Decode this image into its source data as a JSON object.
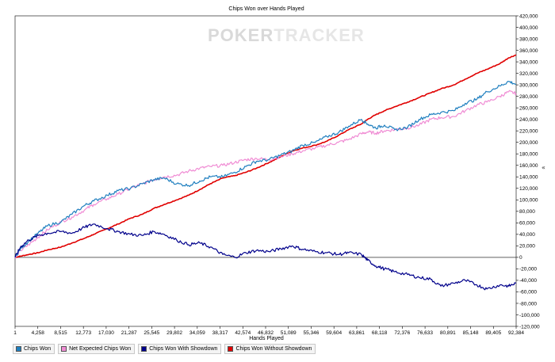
{
  "title": "Chips Won over Hands Played",
  "watermark": {
    "part1": "POKER",
    "part2": "TRACKER"
  },
  "chart_data": {
    "type": "line",
    "title": "Chips Won over Hands Played",
    "xlabel": "Hands Played",
    "ylabel": "",
    "xlim": [
      1,
      92384
    ],
    "ylim": [
      -120000,
      420000
    ],
    "x_ticks": [
      "1",
      "4,258",
      "8,515",
      "12,773",
      "17,030",
      "21,287",
      "25,545",
      "29,802",
      "34,059",
      "38,317",
      "42,574",
      "46,832",
      "51,089",
      "55,346",
      "59,604",
      "63,861",
      "68,118",
      "72,376",
      "76,633",
      "80,891",
      "85,148",
      "89,405",
      "92,384"
    ],
    "y_ticks": [
      -120000,
      -100000,
      -80000,
      -60000,
      -40000,
      -20000,
      0,
      20000,
      40000,
      60000,
      80000,
      100000,
      120000,
      140000,
      160000,
      180000,
      200000,
      220000,
      240000,
      260000,
      280000,
      300000,
      320000,
      340000,
      360000,
      380000,
      400000,
      420000
    ],
    "y_tick_labels": [
      "-120,000",
      "-100,000",
      "-80,000",
      "-60,000",
      "-40,000",
      "-20,000",
      "0",
      "20,000",
      "40,000",
      "60,000",
      "80,000",
      "100,000",
      "120,000",
      "140,000",
      "160,000",
      "180,000",
      "200,000",
      "220,000",
      "240,000",
      "260,000",
      "280,000",
      "300,000",
      "320,000",
      "340,000",
      "360,000",
      "380,000",
      "400,000",
      "420,000"
    ],
    "grid": false,
    "legend_position": "bottom-left",
    "series": [
      {
        "name": "Chips Won",
        "color": "#1f7fbf",
        "x": [
          1,
          1000,
          2500,
          4258,
          6000,
          8515,
          10500,
          12773,
          14500,
          17030,
          19000,
          21287,
          23500,
          25545,
          27500,
          29802,
          32000,
          34059,
          36000,
          38317,
          40500,
          42574,
          44500,
          46832,
          49000,
          51089,
          53000,
          55346,
          57500,
          59604,
          61500,
          63861,
          65000,
          66500,
          68118,
          70000,
          72376,
          74500,
          76633,
          78500,
          80891,
          83000,
          85148,
          87000,
          89405,
          91000,
          92384
        ],
        "y": [
          0,
          15000,
          28000,
          42000,
          55000,
          62000,
          75000,
          90000,
          98000,
          108000,
          116000,
          120000,
          128000,
          135000,
          138000,
          128000,
          125000,
          133000,
          140000,
          140000,
          148000,
          158000,
          167000,
          170000,
          178000,
          185000,
          195000,
          200000,
          210000,
          217000,
          228000,
          240000,
          232000,
          225000,
          230000,
          222000,
          226000,
          240000,
          248000,
          252000,
          255000,
          268000,
          275000,
          288000,
          298000,
          306000,
          301000
        ]
      },
      {
        "name": "Net Expected Chips Won",
        "color": "#f08cd4",
        "x": [
          1,
          1000,
          2500,
          4258,
          6000,
          8515,
          10500,
          12773,
          14500,
          17030,
          19000,
          21287,
          23500,
          25545,
          27500,
          29802,
          32000,
          34059,
          36000,
          38317,
          40500,
          42574,
          44500,
          46832,
          49000,
          51089,
          53000,
          55346,
          57500,
          59604,
          61500,
          63861,
          65000,
          66500,
          68118,
          70000,
          72376,
          74500,
          76633,
          78500,
          80891,
          83000,
          85148,
          87000,
          89405,
          91000,
          92384
        ],
        "y": [
          0,
          12000,
          22000,
          35000,
          48000,
          62000,
          70000,
          82000,
          92000,
          102000,
          110000,
          120000,
          128000,
          135000,
          140000,
          143000,
          150000,
          155000,
          158000,
          160000,
          165000,
          170000,
          172000,
          170000,
          175000,
          180000,
          185000,
          190000,
          195000,
          200000,
          205000,
          215000,
          218000,
          216000,
          220000,
          222000,
          225000,
          230000,
          240000,
          243000,
          245000,
          255000,
          265000,
          270000,
          280000,
          288000,
          285000
        ]
      },
      {
        "name": "Chips Won With Showdown",
        "color": "#00008b",
        "x": [
          1,
          1000,
          2500,
          4258,
          6000,
          8515,
          10500,
          12773,
          14500,
          17030,
          19000,
          21287,
          23500,
          25545,
          27500,
          29802,
          32000,
          34059,
          36000,
          38317,
          40500,
          42574,
          44500,
          46832,
          49000,
          51089,
          53000,
          55346,
          57500,
          59604,
          61500,
          63861,
          65000,
          66500,
          68118,
          70000,
          72376,
          74500,
          76633,
          78500,
          80891,
          83000,
          85148,
          87000,
          89405,
          91000,
          92384
        ],
        "y": [
          0,
          18000,
          30000,
          38000,
          42000,
          45000,
          42000,
          52000,
          58000,
          50000,
          45000,
          40000,
          38000,
          45000,
          40000,
          30000,
          22000,
          25000,
          18000,
          5000,
          0,
          8000,
          12000,
          10000,
          15000,
          20000,
          14000,
          10000,
          8000,
          5000,
          8000,
          5000,
          -5000,
          -15000,
          -20000,
          -25000,
          -30000,
          -35000,
          -38000,
          -50000,
          -45000,
          -40000,
          -48000,
          -55000,
          -48000,
          -50000,
          -45000
        ]
      },
      {
        "name": "Chips Won Without Showdown",
        "color": "#e00000",
        "x": [
          1,
          1000,
          2500,
          4258,
          6000,
          8515,
          10500,
          12773,
          14500,
          17030,
          19000,
          21287,
          23500,
          25545,
          27500,
          29802,
          32000,
          34059,
          36000,
          38317,
          40500,
          42574,
          44500,
          46832,
          49000,
          51089,
          53000,
          55346,
          57500,
          59604,
          61500,
          63861,
          65000,
          66500,
          68118,
          70000,
          72376,
          74500,
          76633,
          78500,
          80891,
          83000,
          85148,
          87000,
          89405,
          91000,
          92384
        ],
        "y": [
          0,
          2000,
          5000,
          8000,
          13000,
          18000,
          25000,
          33000,
          40000,
          50000,
          58000,
          68000,
          75000,
          85000,
          92000,
          100000,
          108000,
          118000,
          128000,
          138000,
          142000,
          148000,
          155000,
          165000,
          175000,
          185000,
          190000,
          195000,
          202000,
          212000,
          222000,
          232000,
          240000,
          248000,
          255000,
          262000,
          270000,
          278000,
          286000,
          293000,
          300000,
          310000,
          320000,
          327000,
          337000,
          347000,
          352000
        ]
      }
    ]
  }
}
